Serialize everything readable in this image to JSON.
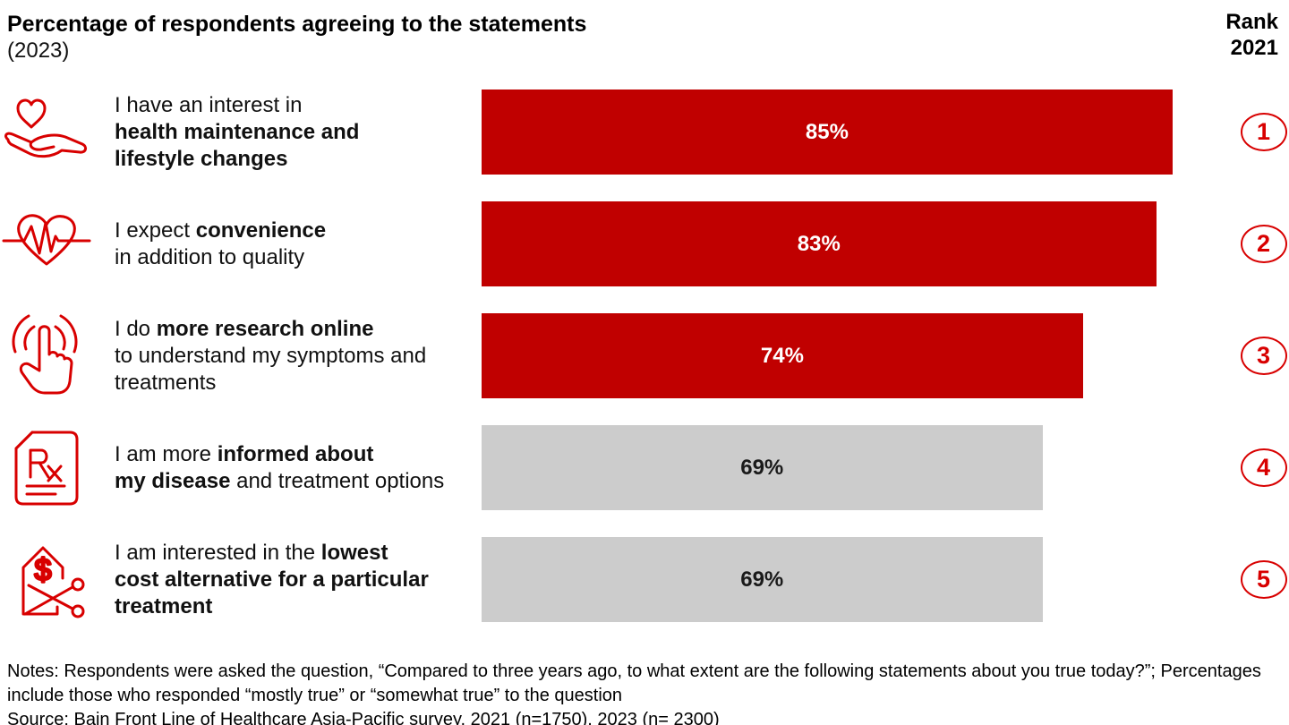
{
  "header": {
    "title": "Percentage of respondents agreeing to the statements",
    "subtitle": "(2023)",
    "rank_line1": "Rank",
    "rank_line2": "2021"
  },
  "colors": {
    "bar_red": "#c00000",
    "bar_gray": "#cccccc",
    "accent_red": "#d80000",
    "label_on_red": "#ffffff",
    "label_on_gray": "#1a1a1a"
  },
  "chart_data": {
    "type": "bar",
    "orientation": "horizontal",
    "title": "Percentage of respondents agreeing to the statements (2023)",
    "unit": "%",
    "xlim": [
      0,
      100
    ],
    "grid": false,
    "legend": false,
    "categories": [
      "I have an interest in health maintenance and lifestyle changes",
      "I expect convenience in addition to quality",
      "I do more research online to understand my symptoms and treatments",
      "I am more informed about my disease and treatment options",
      "I am interested in the lowest cost alternative for a particular treatment"
    ],
    "values": [
      85,
      83,
      74,
      69,
      69
    ],
    "rank_2021": [
      1,
      2,
      3,
      4,
      5
    ],
    "bar_colors": [
      "#c00000",
      "#c00000",
      "#c00000",
      "#cccccc",
      "#cccccc"
    ]
  },
  "rows": [
    {
      "icon": "heart-in-hand-icon",
      "segments": [
        {
          "text": "I have an interest in\n",
          "bold": false
        },
        {
          "text": "health maintenance and\nlifestyle changes",
          "bold": true
        }
      ],
      "value": 85,
      "label": "85%",
      "style": "red",
      "rank": "1"
    },
    {
      "icon": "heart-pulse-icon",
      "segments": [
        {
          "text": "I expect ",
          "bold": false
        },
        {
          "text": "convenience",
          "bold": true
        },
        {
          "text": "\nin addition to quality",
          "bold": false
        }
      ],
      "value": 83,
      "label": "83%",
      "style": "red",
      "rank": "2"
    },
    {
      "icon": "tap-finger-icon",
      "segments": [
        {
          "text": "I do ",
          "bold": false
        },
        {
          "text": "more research online",
          "bold": true
        },
        {
          "text": "\nto understand my symptoms and\ntreatments",
          "bold": false
        }
      ],
      "value": 74,
      "label": "74%",
      "style": "red",
      "rank": "3"
    },
    {
      "icon": "rx-document-icon",
      "segments": [
        {
          "text": "I am more ",
          "bold": false
        },
        {
          "text": "informed about\nmy disease",
          "bold": true
        },
        {
          "text": " and treatment options",
          "bold": false
        }
      ],
      "value": 69,
      "label": "69%",
      "style": "gray",
      "rank": "4"
    },
    {
      "icon": "price-tag-scissors-icon",
      "segments": [
        {
          "text": "I am interested in the ",
          "bold": false
        },
        {
          "text": "lowest\ncost alternative for a particular\ntreatment",
          "bold": true
        }
      ],
      "value": 69,
      "label": "69%",
      "style": "gray",
      "rank": "5"
    }
  ],
  "footer": {
    "notes": "Notes: Respondents were asked the question, “Compared to three years ago, to what extent are the following statements about you true today?”; Percentages include those who responded “mostly true” or “somewhat true” to the question",
    "source": "Source: Bain Front Line of Healthcare Asia-Pacific survey, 2021 (n=1750), 2023 (n= 2300)"
  }
}
